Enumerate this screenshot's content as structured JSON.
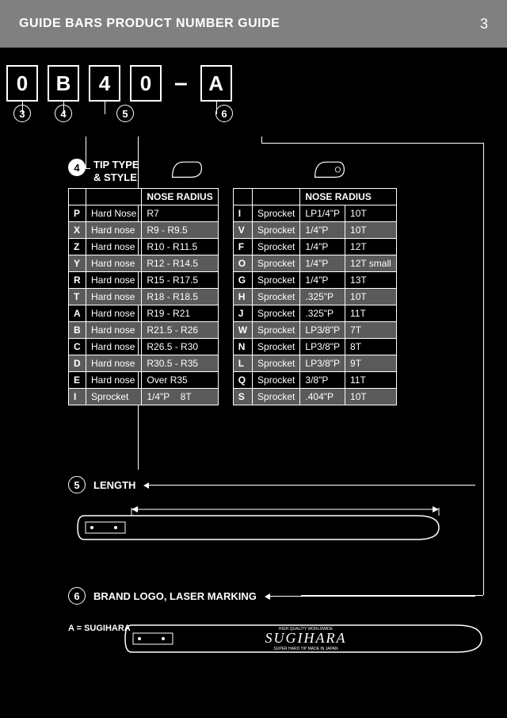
{
  "header": {
    "title": "GUIDE BARS PRODUCT NUMBER GUIDE",
    "page": "3"
  },
  "code": {
    "boxes": [
      "0",
      "B",
      "4",
      "0",
      "A"
    ],
    "nums": [
      "3",
      "4",
      "5",
      "6"
    ]
  },
  "section4": {
    "num": "4",
    "title_line1": "TIP TYPE",
    "title_line2": "& STYLE",
    "col_nose": "NOSE RADIUS",
    "left_rows": [
      {
        "c": "P",
        "t": "Hard Nose",
        "n": "R7",
        "s": false
      },
      {
        "c": "X",
        "t": "Hard nose",
        "n": "R9 - R9.5",
        "s": true
      },
      {
        "c": "Z",
        "t": "Hard nose",
        "n": "R10 - R11.5",
        "s": false
      },
      {
        "c": "Y",
        "t": "Hard nose",
        "n": "R12 - R14.5",
        "s": true
      },
      {
        "c": "R",
        "t": "Hard nose",
        "n": "R15 - R17.5",
        "s": false
      },
      {
        "c": "T",
        "t": "Hard nose",
        "n": "R18 - R18.5",
        "s": true
      },
      {
        "c": "A",
        "t": "Hard nose",
        "n": "R19 - R21",
        "s": false
      },
      {
        "c": "B",
        "t": "Hard nose",
        "n": "R21.5 - R26",
        "s": true
      },
      {
        "c": "C",
        "t": "Hard nose",
        "n": "R26.5 - R30",
        "s": false
      },
      {
        "c": "D",
        "t": "Hard nose",
        "n": "R30.5 - R35",
        "s": true
      },
      {
        "c": "E",
        "t": "Hard nose",
        "n": "Over R35",
        "s": false
      },
      {
        "c": "I",
        "t": "Sprocket",
        "n": "1/4\"P",
        "x": "8T",
        "s": true
      }
    ],
    "right_rows": [
      {
        "c": "I",
        "t": "Sprocket",
        "n": "LP1/4\"P",
        "x": "10T",
        "s": false
      },
      {
        "c": "V",
        "t": "Sprocket",
        "n": "1/4\"P",
        "x": "10T",
        "s": true
      },
      {
        "c": "F",
        "t": "Sprocket",
        "n": "1/4\"P",
        "x": "12T",
        "s": false
      },
      {
        "c": "O",
        "t": "Sprocket",
        "n": "1/4\"P",
        "x": "12T small",
        "s": true
      },
      {
        "c": "G",
        "t": "Sprocket",
        "n": "1/4\"P",
        "x": "13T",
        "s": false
      },
      {
        "c": "H",
        "t": "Sprocket",
        "n": ".325\"P",
        "x": "10T",
        "s": true
      },
      {
        "c": "J",
        "t": "Sprocket",
        "n": ".325\"P",
        "x": "11T",
        "s": false
      },
      {
        "c": "W",
        "t": "Sprocket",
        "n": "LP3/8\"P",
        "x": "7T",
        "s": true
      },
      {
        "c": "N",
        "t": "Sprocket",
        "n": "LP3/8\"P",
        "x": "8T",
        "s": false
      },
      {
        "c": "L",
        "t": "Sprocket",
        "n": "LP3/8\"P",
        "x": "9T",
        "s": true
      },
      {
        "c": "Q",
        "t": "Sprocket",
        "n": "3/8\"P",
        "x": "11T",
        "s": false
      },
      {
        "c": "S",
        "t": "Sprocket",
        "n": ".404\"P",
        "x": "10T",
        "s": true
      }
    ]
  },
  "section5": {
    "num": "5",
    "title": "LENGTH"
  },
  "section6": {
    "num": "6",
    "title": "BRAND LOGO, LASER MARKING",
    "note": "A = SUGIHARA",
    "brand": "SUGIHARA"
  },
  "colors": {
    "bg": "#000000",
    "fg": "#ffffff",
    "header": "#808080",
    "shade": "#5a5a5a"
  }
}
